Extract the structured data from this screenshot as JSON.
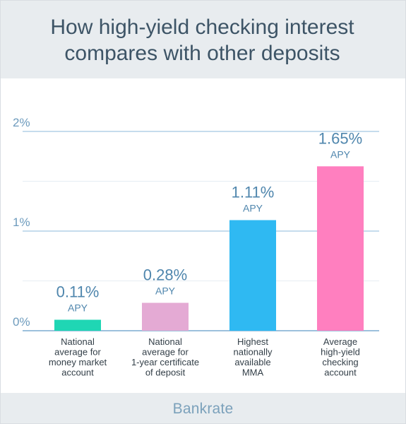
{
  "chart_data": {
    "type": "bar",
    "title_lines": [
      "How high-yield checking interest",
      "compares with other deposits"
    ],
    "categories": [
      [
        "National",
        "average for",
        "money market",
        "account"
      ],
      [
        "National",
        "average for",
        "1-year certificate",
        "of deposit"
      ],
      [
        "Highest",
        "nationally",
        "available",
        "MMA"
      ],
      [
        "Average",
        "high-yield",
        "checking",
        "account"
      ]
    ],
    "values": [
      0.11,
      0.28,
      1.11,
      1.65
    ],
    "value_labels": [
      "0.11%",
      "0.28%",
      "1.11%",
      "1.65%"
    ],
    "unit_label": "APY",
    "bar_colors": [
      "#1fd6b4",
      "#e4aad4",
      "#2fb9f2",
      "#ff7fbf"
    ],
    "ylim": [
      0,
      2
    ],
    "yticks": [
      0,
      1,
      2
    ],
    "ytick_labels": [
      "0%",
      "1%",
      "2%"
    ],
    "minor_gridlines": [
      0.5,
      1.5
    ],
    "grid": true,
    "legend": "none"
  },
  "brand": "Bankrate"
}
